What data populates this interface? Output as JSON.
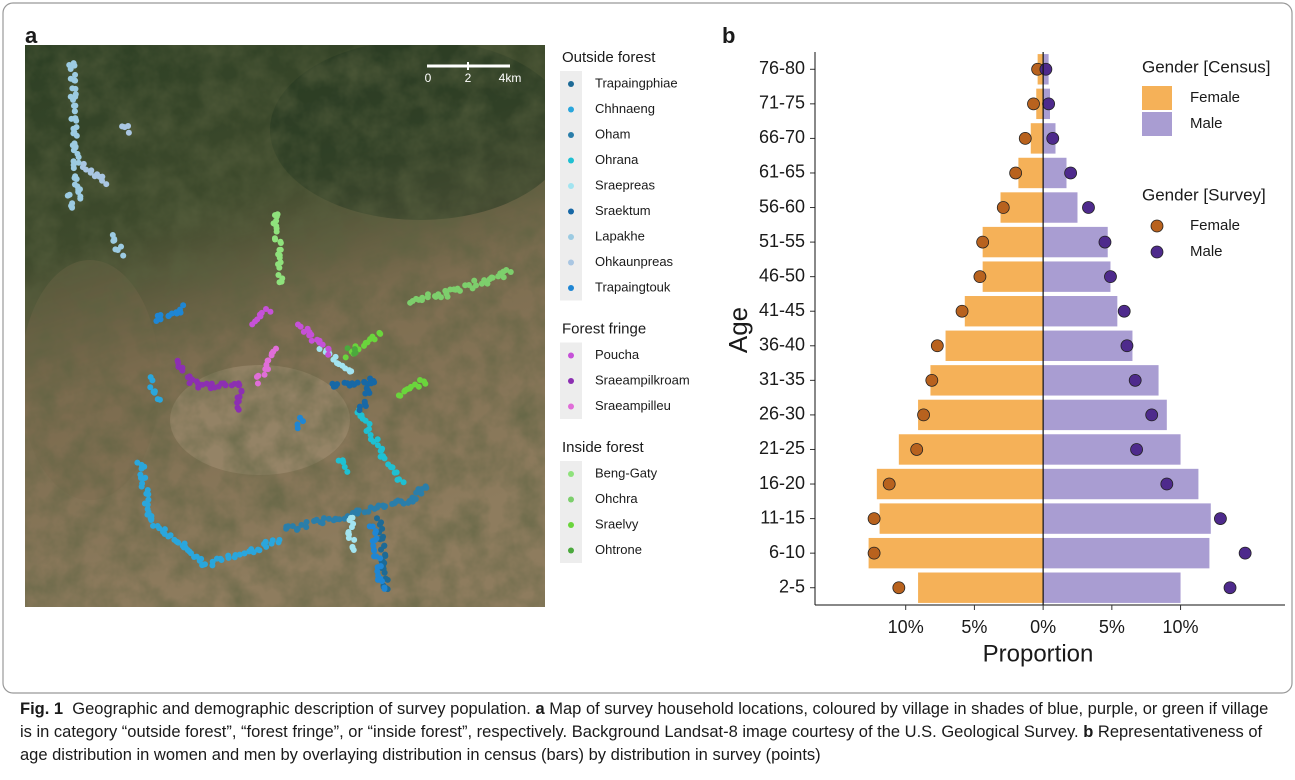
{
  "panel_a": {
    "letter": "a",
    "scale_labels": [
      "0",
      "2",
      "4km"
    ],
    "legend": [
      {
        "title": "Outside forest",
        "villages": [
          {
            "name": "Trapaingphiae",
            "color": "#1d6a96"
          },
          {
            "name": "Chhnaeng",
            "color": "#2aa6dc"
          },
          {
            "name": "Oham",
            "color": "#2a7eaa"
          },
          {
            "name": "Ohrana",
            "color": "#1fc0d2"
          },
          {
            "name": "Sraepreas",
            "color": "#a2e4f0"
          },
          {
            "name": "Sraektum",
            "color": "#1768a6"
          },
          {
            "name": "Lapakhe",
            "color": "#9ccbe2"
          },
          {
            "name": "Ohkaunpreas",
            "color": "#a9c6e2"
          },
          {
            "name": "Trapaingtouk",
            "color": "#1f86d4"
          }
        ]
      },
      {
        "title": "Forest fringe",
        "villages": [
          {
            "name": "Poucha",
            "color": "#c651d8"
          },
          {
            "name": "Sraeampilkroam",
            "color": "#8c2fb2"
          },
          {
            "name": "Sraeampilleu",
            "color": "#e06ed8"
          }
        ]
      },
      {
        "title": "Inside forest",
        "villages": [
          {
            "name": "Beng-Gaty",
            "color": "#8fe27c"
          },
          {
            "name": "Ohchra",
            "color": "#7dcf6c"
          },
          {
            "name": "Sraelvy",
            "color": "#6ad53c"
          },
          {
            "name": "Ohtrone",
            "color": "#4ba93d"
          }
        ]
      }
    ]
  },
  "chart_data": {
    "type": "pyramid",
    "letter": "b",
    "x_label": "Proportion",
    "y_label": "Age",
    "categories": [
      "2-5",
      "6-10",
      "11-15",
      "16-20",
      "21-25",
      "26-30",
      "31-35",
      "36-40",
      "41-45",
      "46-50",
      "51-55",
      "56-60",
      "61-65",
      "66-70",
      "71-75",
      "76-80"
    ],
    "xlim": [
      -16.6,
      17.6
    ],
    "xticks": [
      {
        "value": -10,
        "label": "10%"
      },
      {
        "value": -5,
        "label": "5%"
      },
      {
        "value": 0,
        "label": "0%"
      },
      {
        "value": 5,
        "label": "5%"
      },
      {
        "value": 10,
        "label": "10%"
      }
    ],
    "legend_titles": [
      "Gender [Census]",
      "Gender [Survey]"
    ],
    "series": [
      {
        "name": "Female",
        "mark": "bar",
        "color": "#f5b158",
        "values": [
          -9.1,
          -12.7,
          -11.9,
          -12.1,
          -10.5,
          -9.1,
          -8.2,
          -7.1,
          -5.7,
          -4.4,
          -4.4,
          -3.1,
          -1.8,
          -0.9,
          -0.5,
          -0.4
        ]
      },
      {
        "name": "Male",
        "mark": "bar",
        "color": "#a99dd2",
        "values": [
          10.0,
          12.1,
          12.2,
          11.3,
          10.0,
          9.0,
          8.4,
          6.5,
          5.4,
          4.9,
          4.7,
          2.5,
          1.7,
          0.9,
          0.5,
          0.4
        ]
      },
      {
        "name": "Female",
        "mark": "point",
        "color": "#b8621e",
        "values": [
          -10.5,
          -12.3,
          -12.3,
          -11.2,
          -9.2,
          -8.7,
          -8.1,
          -7.7,
          -5.9,
          -4.6,
          -4.4,
          -2.9,
          -2.0,
          -1.3,
          -0.7,
          -0.4
        ]
      },
      {
        "name": "Male",
        "mark": "point",
        "color": "#4e2a8c",
        "values": [
          13.6,
          14.7,
          12.9,
          9.0,
          6.8,
          7.9,
          6.7,
          6.1,
          5.9,
          4.9,
          4.5,
          3.3,
          2.0,
          0.7,
          0.4,
          0.2
        ]
      }
    ]
  },
  "caption": {
    "label": "Fig. 1",
    "intro": "Geographic and demographic description of survey population.",
    "a_label": "a",
    "a_text": "Map of survey household locations, coloured by village in shades of blue, purple, or green if village is in category “outside forest”, “forest fringe”, or “inside forest”, respectively. Background Landsat-8 image courtesy of the U.S. Geological Survey.",
    "b_label": "b",
    "b_text": "Representativeness of age distribution in women and men by overlaying distribution in census (bars) by distribution in survey (points)"
  }
}
